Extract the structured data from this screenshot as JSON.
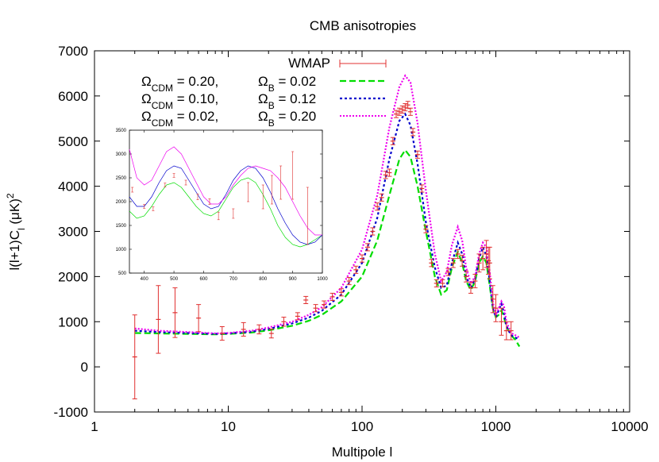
{
  "chart_data": {
    "type": "line",
    "title": "CMB anisotropies",
    "xlabel": "Multipole l",
    "ylabel": "l(l+1)C",
    "ylabel_sub": "l",
    "ylabel_units": " (μK)",
    "ylabel_sup": "2",
    "xscale": "log",
    "xlim": [
      1,
      10000
    ],
    "ylim": [
      -1000,
      7000
    ],
    "xticks": [
      1,
      10,
      100,
      1000,
      10000
    ],
    "xtick_labels": [
      "1",
      "10",
      "100",
      "1000",
      "10000"
    ],
    "yticks": [
      -1000,
      0,
      1000,
      2000,
      3000,
      4000,
      5000,
      6000,
      7000
    ],
    "ytick_labels": [
      "-1000",
      "0",
      "1000",
      "2000",
      "3000",
      "4000",
      "5000",
      "6000",
      "7000"
    ],
    "legend": {
      "position": "top",
      "entries": [
        {
          "id": "wmap",
          "label": "WMAP",
          "color": "#e03030",
          "style": "errorbar"
        },
        {
          "id": "green",
          "cdm_label": "Ω",
          "cdm_sub": "CDM",
          "cdm_value": " = 0.20,",
          "b_label": "Ω",
          "b_sub": "B",
          "b_value": " = 0.02",
          "color": "#00dd00",
          "dash": "8,4"
        },
        {
          "id": "blue",
          "cdm_label": "Ω",
          "cdm_sub": "CDM",
          "cdm_value": " = 0.10,",
          "b_label": "Ω",
          "b_sub": "B",
          "b_value": " = 0.12",
          "color": "#0000cc",
          "dash": "3,3"
        },
        {
          "id": "magenta",
          "cdm_label": "Ω",
          "cdm_sub": "CDM",
          "cdm_value": " = 0.02,",
          "b_label": "Ω",
          "b_sub": "B",
          "b_value": " = 0.20",
          "color": "#ee00ee",
          "dash": "2,2"
        }
      ]
    },
    "series": [
      {
        "name": "Omega_CDM = 0.20, Omega_B = 0.02",
        "color": "#00dd00",
        "dash": "8,4",
        "x": [
          2,
          3,
          5,
          8,
          10,
          15,
          20,
          30,
          40,
          50,
          70,
          100,
          130,
          160,
          190,
          210,
          230,
          260,
          300,
          350,
          390,
          430,
          470,
          520,
          560,
          600,
          650,
          700,
          750,
          800,
          850,
          900,
          950,
          1000,
          1050,
          1100,
          1150,
          1200,
          1300,
          1400,
          1500
        ],
        "y": [
          750,
          740,
          730,
          720,
          730,
          760,
          810,
          910,
          1020,
          1150,
          1450,
          2000,
          2800,
          3800,
          4600,
          4800,
          4650,
          4000,
          3000,
          2000,
          1600,
          1700,
          2200,
          2550,
          2300,
          1900,
          1700,
          1900,
          2300,
          2450,
          2300,
          1800,
          1300,
          1100,
          1150,
          1250,
          1100,
          900,
          700,
          600,
          450
        ]
      },
      {
        "name": "Omega_CDM = 0.10, Omega_B = 0.12",
        "color": "#0000cc",
        "dash": "3,3",
        "x": [
          2,
          3,
          5,
          8,
          10,
          15,
          20,
          30,
          40,
          50,
          70,
          100,
          130,
          160,
          190,
          210,
          230,
          260,
          300,
          350,
          390,
          430,
          470,
          520,
          560,
          600,
          650,
          700,
          750,
          800,
          850,
          900,
          950,
          1000,
          1050,
          1100,
          1150,
          1200,
          1300,
          1400,
          1500
        ],
        "y": [
          800,
          770,
          750,
          730,
          740,
          780,
          840,
          960,
          1090,
          1240,
          1600,
          2300,
          3300,
          4600,
          5450,
          5600,
          5350,
          4500,
          3200,
          2200,
          1750,
          1800,
          2300,
          2750,
          2500,
          2000,
          1750,
          1950,
          2400,
          2650,
          2450,
          1900,
          1300,
          1100,
          1250,
          1400,
          1200,
          900,
          700,
          650,
          600
        ]
      },
      {
        "name": "Omega_CDM = 0.02, Omega_B = 0.20",
        "color": "#ee00ee",
        "dash": "2,2",
        "x": [
          2,
          3,
          5,
          8,
          10,
          15,
          20,
          30,
          40,
          50,
          70,
          100,
          130,
          160,
          190,
          210,
          230,
          260,
          300,
          350,
          390,
          430,
          470,
          520,
          560,
          600,
          650,
          700,
          750,
          800,
          850,
          900,
          950,
          1000,
          1050,
          1100,
          1150,
          1200,
          1300,
          1400,
          1500
        ],
        "y": [
          850,
          800,
          770,
          740,
          750,
          800,
          870,
          1000,
          1150,
          1320,
          1750,
          2600,
          3800,
          5300,
          6200,
          6450,
          6300,
          5400,
          3900,
          2500,
          1900,
          2100,
          2700,
          3100,
          2800,
          2200,
          1850,
          2000,
          2500,
          2750,
          2650,
          2100,
          1450,
          1150,
          1300,
          1450,
          1350,
          1000,
          750,
          700,
          650
        ]
      }
    ],
    "wmap": {
      "name": "WMAP",
      "color": "#e03030",
      "x": [
        2,
        3,
        4,
        6,
        9,
        13,
        17,
        21,
        26,
        33,
        38,
        45,
        52,
        60,
        70,
        80,
        90,
        100,
        110,
        120,
        130,
        140,
        150,
        160,
        170,
        180,
        190,
        200,
        210,
        220,
        230,
        240,
        260,
        280,
        300,
        330,
        360,
        400,
        440,
        480,
        520,
        560,
        600,
        650,
        700,
        750,
        800,
        850,
        880,
        900,
        950,
        1000,
        1100,
        1200,
        1300
      ],
      "y": [
        220,
        1050,
        1200,
        1080,
        740,
        830,
        830,
        740,
        1000,
        1120,
        1480,
        1300,
        1380,
        1550,
        1650,
        1900,
        2150,
        2400,
        2650,
        3000,
        3550,
        3750,
        4250,
        4300,
        5000,
        5600,
        5650,
        5700,
        5750,
        5800,
        5650,
        5200,
        4700,
        3950,
        3050,
        2300,
        1850,
        1850,
        2100,
        2300,
        2500,
        2350,
        2000,
        1750,
        1900,
        2300,
        2400,
        2500,
        2350,
        2300,
        1500,
        1300,
        1000,
        800,
        800
      ],
      "err": [
        930,
        750,
        550,
        300,
        150,
        150,
        100,
        100,
        100,
        80,
        80,
        80,
        80,
        80,
        80,
        80,
        80,
        80,
        80,
        80,
        80,
        80,
        80,
        80,
        80,
        80,
        80,
        80,
        80,
        80,
        80,
        80,
        80,
        80,
        80,
        80,
        80,
        80,
        80,
        100,
        100,
        120,
        120,
        120,
        150,
        200,
        250,
        300,
        300,
        350,
        300,
        300,
        300,
        200,
        200
      ]
    },
    "inset": {
      "type": "line",
      "xlim": [
        350,
        1000
      ],
      "ylim": [
        500,
        3500
      ],
      "xticks": [
        400,
        500,
        600,
        700,
        800,
        900,
        1000
      ],
      "xtick_labels": [
        "400",
        "500",
        "600",
        "700",
        "800",
        "900",
        "1000"
      ],
      "yticks": [
        500,
        1000,
        1500,
        2000,
        2500,
        3000,
        3500
      ],
      "ytick_labels": [
        "500",
        "1000",
        "1500",
        "2000",
        "2500",
        "3000",
        "3500"
      ],
      "series": [
        {
          "name": "Omega_CDM = 0.20, Omega_B = 0.02",
          "color": "#00dd00",
          "x": [
            350,
            375,
            400,
            425,
            450,
            475,
            500,
            525,
            550,
            575,
            600,
            625,
            650,
            675,
            700,
            725,
            750,
            775,
            800,
            825,
            850,
            875,
            900,
            925,
            950,
            975,
            1000
          ],
          "y": [
            1800,
            1650,
            1700,
            1900,
            2150,
            2350,
            2400,
            2300,
            2100,
            1900,
            1750,
            1700,
            1800,
            2050,
            2300,
            2450,
            2500,
            2400,
            2150,
            1850,
            1500,
            1250,
            1100,
            1050,
            1100,
            1200,
            1300
          ]
        },
        {
          "name": "Omega_CDM = 0.10, Omega_B = 0.12",
          "color": "#0000cc",
          "x": [
            350,
            375,
            400,
            425,
            450,
            475,
            500,
            525,
            550,
            575,
            600,
            625,
            650,
            675,
            700,
            725,
            750,
            775,
            800,
            825,
            850,
            875,
            900,
            925,
            950,
            975,
            1000
          ],
          "y": [
            2100,
            1900,
            1900,
            2100,
            2400,
            2650,
            2750,
            2700,
            2450,
            2200,
            1950,
            1850,
            1900,
            2150,
            2450,
            2650,
            2750,
            2700,
            2500,
            2200,
            1850,
            1550,
            1300,
            1150,
            1100,
            1150,
            1300
          ]
        },
        {
          "name": "Omega_CDM = 0.02, Omega_B = 0.20",
          "color": "#ee00ee",
          "x": [
            350,
            375,
            400,
            425,
            450,
            475,
            500,
            525,
            550,
            575,
            600,
            625,
            650,
            675,
            700,
            725,
            750,
            775,
            800,
            825,
            850,
            875,
            900,
            925,
            950,
            975,
            1000
          ],
          "y": [
            3100,
            2500,
            2350,
            2450,
            2750,
            3050,
            3150,
            3000,
            2700,
            2400,
            2100,
            1950,
            1950,
            2100,
            2350,
            2550,
            2700,
            2750,
            2700,
            2650,
            2500,
            2300,
            2000,
            1700,
            1450,
            1300,
            1300
          ]
        }
      ],
      "wmap": {
        "name": "WMAP",
        "color": "#e03030",
        "x": [
          360,
          400,
          430,
          470,
          500,
          540,
          580,
          620,
          650,
          700,
          750,
          800,
          830,
          860,
          900,
          950
        ],
        "y": [
          2250,
          1900,
          1850,
          2350,
          2550,
          2400,
          2100,
          2000,
          1700,
          1750,
          2200,
          2100,
          2250,
          2400,
          2550,
          1700
        ],
        "err": [
          50,
          40,
          40,
          40,
          40,
          50,
          60,
          60,
          80,
          100,
          200,
          250,
          300,
          350,
          500,
          600
        ]
      }
    }
  }
}
